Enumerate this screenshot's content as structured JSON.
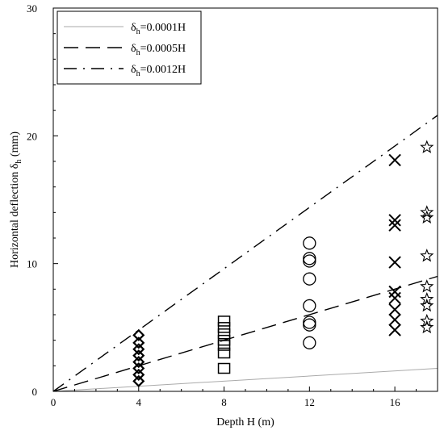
{
  "chart_data": {
    "type": "scatter",
    "xlabel": "Depth H (m)",
    "ylabel_parts": {
      "main": "Horizontal deflection δ",
      "sub": "h",
      "unit": " (mm)"
    },
    "xlim": [
      0,
      18
    ],
    "ylim": [
      0,
      30
    ],
    "x_ticks": [
      0,
      4,
      8,
      12,
      16
    ],
    "y_ticks": [
      0,
      10,
      20,
      30
    ],
    "grid": false,
    "legend_position": "top-left",
    "reference_lines": [
      {
        "name_main": "δ",
        "name_sub": "h",
        "name_rest": "=0.0001H",
        "ratio": 0.0001,
        "style": "solid",
        "color": "#aaaaaa"
      },
      {
        "name_main": "δ",
        "name_sub": "h",
        "name_rest": "=0.0005H",
        "ratio": 0.0005,
        "style": "long-dash",
        "color": "#000000"
      },
      {
        "name_main": "δ",
        "name_sub": "h",
        "name_rest": "=0.0012H",
        "ratio": 0.0012,
        "style": "dash-dot",
        "color": "#000000"
      }
    ],
    "series": [
      {
        "marker": "diamond",
        "x": 4,
        "values": [
          0.8,
          1.3,
          1.8,
          2.3,
          2.8,
          3.3,
          3.8,
          4.4
        ]
      },
      {
        "marker": "square",
        "x": 8,
        "values": [
          1.8,
          3.0,
          3.6,
          4.0,
          4.5,
          5.0,
          5.5
        ]
      },
      {
        "marker": "circle",
        "x": 12,
        "values": [
          3.8,
          5.2,
          5.4,
          6.7,
          8.8,
          10.2,
          10.4,
          11.6
        ]
      },
      {
        "marker": "cross",
        "x": 16,
        "values": [
          4.8,
          5.6,
          6.4,
          7.3,
          7.8,
          10.1,
          13.0,
          13.4,
          18.1
        ]
      },
      {
        "marker": "star",
        "x": 17.5,
        "values": [
          5.0,
          5.5,
          6.7,
          7.2,
          8.2,
          10.6,
          13.6,
          14.0,
          19.1
        ]
      }
    ]
  }
}
